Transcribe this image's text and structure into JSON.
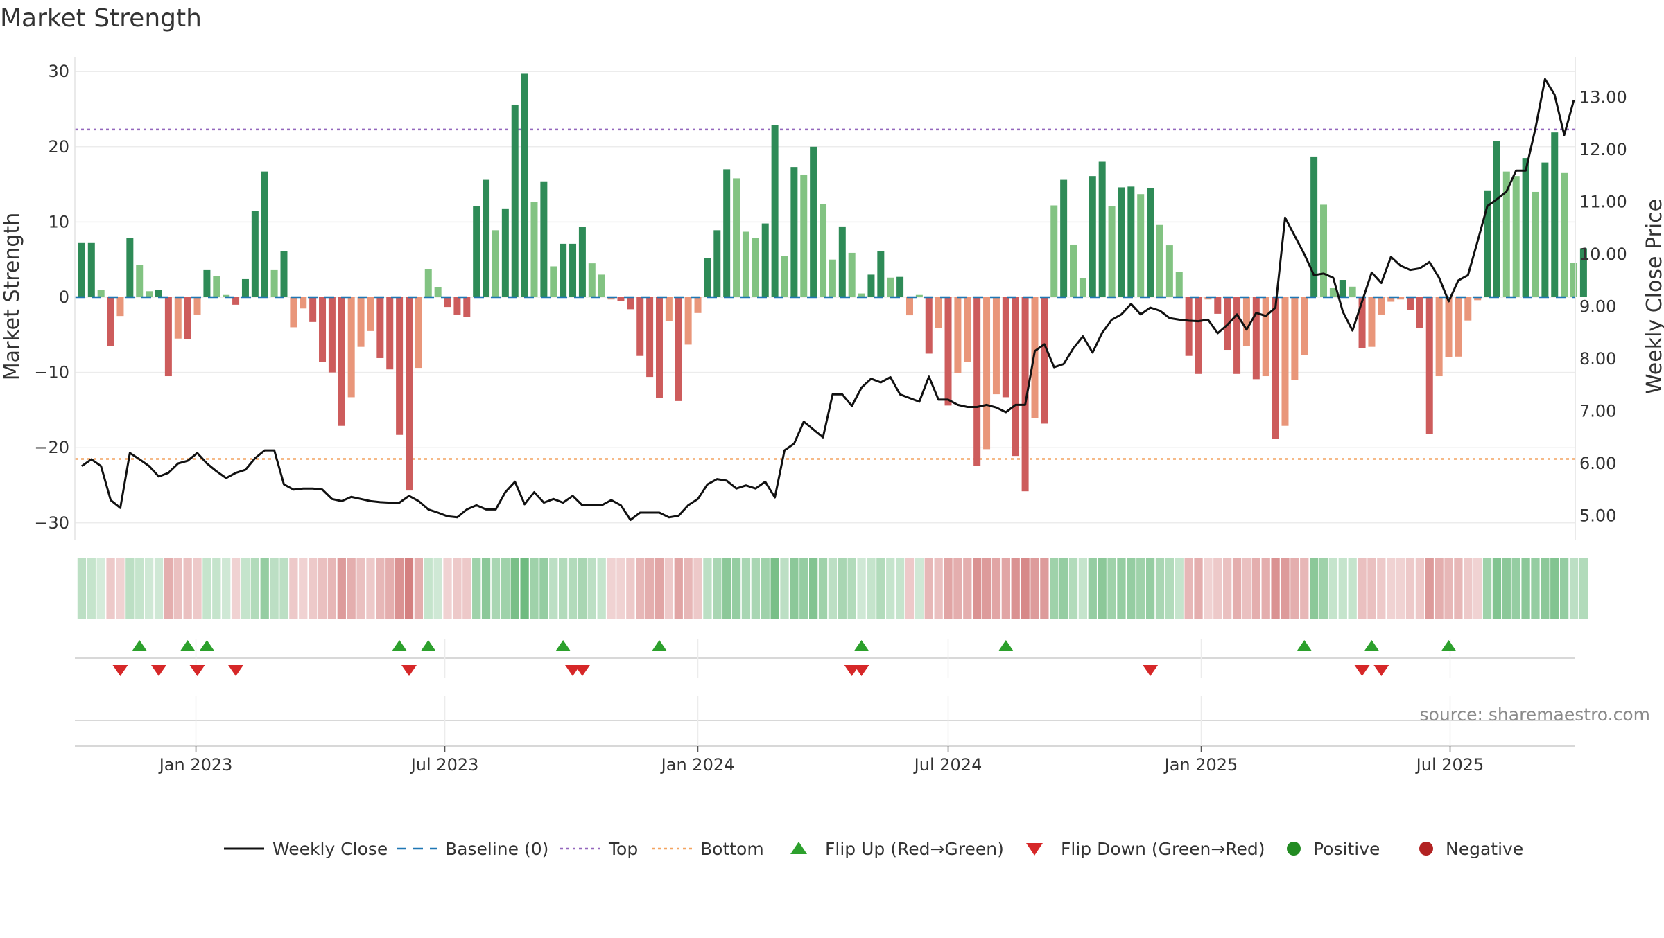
{
  "chart_data": {
    "type": "bar",
    "title": "Market Strength",
    "ylabel": "Market Strength",
    "y2label": "Weekly Close Price",
    "ylim": [
      -35,
      32
    ],
    "y2lim": [
      4.0,
      13.7
    ],
    "yticks": [
      -30,
      -20,
      -10,
      0,
      10,
      20,
      30
    ],
    "y2ticks": [
      "5.00",
      "6.00",
      "7.00",
      "8.00",
      "9.00",
      "10.00",
      "11.00",
      "12.00",
      "13.00"
    ],
    "x_range": [
      "2022-10-05",
      "2025-09-30"
    ],
    "xticks": [
      {
        "label": "Jan 2023",
        "date": "2023-01-01"
      },
      {
        "label": "Jul 2023",
        "date": "2023-07-01"
      },
      {
        "label": "Jan 2024",
        "date": "2024-01-01"
      },
      {
        "label": "Jul 2024",
        "date": "2024-07-01"
      },
      {
        "label": "Jan 2025",
        "date": "2025-01-01"
      },
      {
        "label": "Jul 2025",
        "date": "2025-07-01"
      }
    ],
    "top_level": 22.3,
    "bottom_level": -21.5,
    "start_week": "2022-10-10",
    "week_days": 7,
    "strength": [
      7.2,
      7.2,
      1.0,
      -6.5,
      -2.5,
      7.9,
      4.3,
      0.8,
      1.0,
      -10.5,
      -5.5,
      -5.6,
      -2.3,
      3.6,
      2.8,
      0.3,
      -1.0,
      2.4,
      11.5,
      16.7,
      3.6,
      6.1,
      -4.0,
      -1.5,
      -3.3,
      -8.6,
      -10.0,
      -17.1,
      -13.3,
      -6.6,
      -4.5,
      -8.1,
      -9.6,
      -18.3,
      -25.7,
      -9.4,
      3.7,
      1.3,
      -1.3,
      -2.3,
      -2.6,
      12.1,
      15.6,
      8.9,
      11.8,
      25.6,
      29.7,
      12.7,
      15.4,
      4.1,
      7.1,
      7.1,
      9.3,
      4.5,
      3.0,
      -0.3,
      -0.5,
      -1.6,
      -7.8,
      -10.6,
      -13.4,
      -3.2,
      -13.8,
      -6.3,
      -2.1,
      5.2,
      8.9,
      17.0,
      15.8,
      8.7,
      7.9,
      9.8,
      22.9,
      5.5,
      17.3,
      16.3,
      20.0,
      12.4,
      5.0,
      9.4,
      5.9,
      0.5,
      3.0,
      6.1,
      2.6,
      2.7,
      -2.4,
      0.3,
      -7.5,
      -4.1,
      -14.4,
      -10.1,
      -8.6,
      -22.4,
      -20.2,
      -12.9,
      -13.3,
      -21.1,
      -25.8,
      -16.1,
      -16.8,
      12.2,
      15.6,
      7.0,
      2.5,
      16.1,
      18.0,
      12.1,
      14.6,
      14.7,
      13.7,
      14.5,
      9.6,
      6.9,
      3.4,
      -7.8,
      -10.2,
      -0.3,
      -2.2,
      -7.0,
      -10.2,
      -6.5,
      -10.9,
      -10.5,
      -18.8,
      -17.1,
      -11.0,
      -7.7,
      18.7,
      12.3,
      1.2,
      2.3,
      1.4,
      -6.8,
      -6.6,
      -2.3,
      -0.6,
      -0.3,
      -1.7,
      -4.1,
      -18.2,
      -10.5,
      -8.0,
      -7.9,
      -3.1,
      -0.4,
      14.2,
      20.8,
      16.7,
      16.1,
      18.5,
      14.0,
      17.9,
      21.9,
      16.5,
      4.6,
      6.5
    ],
    "weekly_close": [
      5.95,
      6.08,
      5.95,
      5.3,
      5.15,
      6.2,
      6.08,
      5.95,
      5.75,
      5.82,
      6.0,
      6.05,
      6.2,
      6.0,
      5.85,
      5.72,
      5.82,
      5.88,
      6.1,
      6.25,
      6.25,
      5.6,
      5.5,
      5.52,
      5.52,
      5.5,
      5.32,
      5.28,
      5.36,
      5.32,
      5.28,
      5.26,
      5.25,
      5.25,
      5.38,
      5.28,
      5.12,
      5.06,
      4.99,
      4.97,
      5.12,
      5.2,
      5.12,
      5.12,
      5.45,
      5.65,
      5.22,
      5.45,
      5.25,
      5.32,
      5.25,
      5.38,
      5.2,
      5.2,
      5.2,
      5.3,
      5.2,
      4.92,
      5.06,
      5.06,
      5.06,
      4.97,
      5.0,
      5.2,
      5.32,
      5.6,
      5.7,
      5.67,
      5.52,
      5.58,
      5.52,
      5.65,
      5.35,
      6.25,
      6.38,
      6.8,
      6.65,
      6.5,
      7.32,
      7.32,
      7.1,
      7.45,
      7.62,
      7.55,
      7.65,
      7.32,
      7.25,
      7.18,
      7.66,
      7.22,
      7.22,
      7.12,
      7.08,
      7.08,
      7.12,
      7.07,
      6.98,
      7.12,
      7.12,
      8.15,
      8.28,
      7.84,
      7.9,
      8.2,
      8.43,
      8.12,
      8.5,
      8.75,
      8.85,
      9.05,
      8.85,
      8.98,
      8.92,
      8.78,
      8.75,
      8.73,
      8.72,
      8.75,
      8.49,
      8.65,
      8.85,
      8.56,
      8.88,
      8.82,
      8.98,
      10.7,
      10.35,
      10.0,
      9.6,
      9.63,
      9.55,
      8.9,
      8.54,
      9.1,
      9.65,
      9.45,
      9.95,
      9.78,
      9.7,
      9.73,
      9.85,
      9.55,
      9.1,
      9.5,
      9.6,
      10.25,
      10.92,
      11.05,
      11.2,
      11.6,
      11.6,
      12.4,
      13.35,
      13.05,
      12.28,
      12.95
    ],
    "strip_intensity": [
      0.35,
      0.3,
      0.22,
      0.3,
      0.25,
      0.35,
      0.3,
      0.25,
      0.25,
      0.45,
      0.35,
      0.35,
      0.3,
      0.3,
      0.3,
      0.25,
      0.25,
      0.3,
      0.4,
      0.55,
      0.35,
      0.35,
      0.3,
      0.25,
      0.3,
      0.35,
      0.4,
      0.55,
      0.45,
      0.35,
      0.3,
      0.4,
      0.45,
      0.6,
      0.7,
      0.45,
      0.3,
      0.25,
      0.25,
      0.3,
      0.3,
      0.5,
      0.6,
      0.45,
      0.5,
      0.7,
      0.75,
      0.5,
      0.55,
      0.35,
      0.4,
      0.4,
      0.45,
      0.35,
      0.3,
      0.25,
      0.25,
      0.3,
      0.4,
      0.45,
      0.5,
      0.3,
      0.5,
      0.4,
      0.3,
      0.35,
      0.45,
      0.6,
      0.55,
      0.45,
      0.45,
      0.5,
      0.7,
      0.35,
      0.6,
      0.55,
      0.65,
      0.5,
      0.35,
      0.45,
      0.4,
      0.25,
      0.3,
      0.4,
      0.3,
      0.3,
      0.3,
      0.25,
      0.4,
      0.35,
      0.5,
      0.45,
      0.45,
      0.6,
      0.55,
      0.5,
      0.5,
      0.6,
      0.65,
      0.55,
      0.55,
      0.5,
      0.55,
      0.4,
      0.3,
      0.55,
      0.6,
      0.5,
      0.55,
      0.55,
      0.5,
      0.55,
      0.45,
      0.4,
      0.3,
      0.4,
      0.45,
      0.25,
      0.3,
      0.35,
      0.45,
      0.35,
      0.45,
      0.45,
      0.6,
      0.55,
      0.45,
      0.4,
      0.6,
      0.5,
      0.3,
      0.3,
      0.3,
      0.35,
      0.35,
      0.3,
      0.25,
      0.25,
      0.3,
      0.3,
      0.55,
      0.45,
      0.4,
      0.4,
      0.3,
      0.25,
      0.5,
      0.65,
      0.6,
      0.55,
      0.6,
      0.55,
      0.6,
      0.65,
      0.55,
      0.35,
      0.4
    ],
    "flip_up_dates": [
      "2022-11-21",
      "2022-12-26",
      "2023-01-09",
      "2023-05-29",
      "2023-06-19",
      "2023-09-25",
      "2023-12-04",
      "2024-04-29",
      "2024-08-12",
      "2025-03-17",
      "2025-05-05",
      "2025-06-30"
    ],
    "flip_down_dates": [
      "2022-11-07",
      "2022-12-05",
      "2023-01-02",
      "2023-01-30",
      "2023-06-05",
      "2023-10-02",
      "2023-10-09",
      "2024-04-22",
      "2024-04-29",
      "2024-11-25",
      "2025-04-28",
      "2025-05-12"
    ],
    "legend": [
      {
        "label": "Weekly Close",
        "kind": "line"
      },
      {
        "label": "Baseline (0)",
        "kind": "dash"
      },
      {
        "label": "Top",
        "kind": "dot-purple"
      },
      {
        "label": "Bottom",
        "kind": "dot-orange"
      },
      {
        "label": "Flip Up (Red→Green)",
        "kind": "tri-up"
      },
      {
        "label": "Flip Down (Green→Red)",
        "kind": "tri-down"
      },
      {
        "label": "Positive",
        "kind": "circle-green"
      },
      {
        "label": "Negative",
        "kind": "circle-red"
      }
    ],
    "legend_position": "bottom-center",
    "annotation": "source: sharemaestro.com"
  },
  "colors": {
    "positive_strong": "#2e8b57",
    "positive_light": "#82c382",
    "negative_strong": "#cd5c5c",
    "negative_light": "#e9967a",
    "strip_green": "#3fa455",
    "strip_red": "#c24a4a",
    "price_line": "#111111",
    "baseline": "#1f77b4",
    "top_line": "#9467bd",
    "bottom_line": "#f4a460",
    "flip_up": "#2ca02c",
    "flip_down": "#d62728",
    "legend_positive": "#228b22",
    "legend_negative": "#b22222"
  }
}
